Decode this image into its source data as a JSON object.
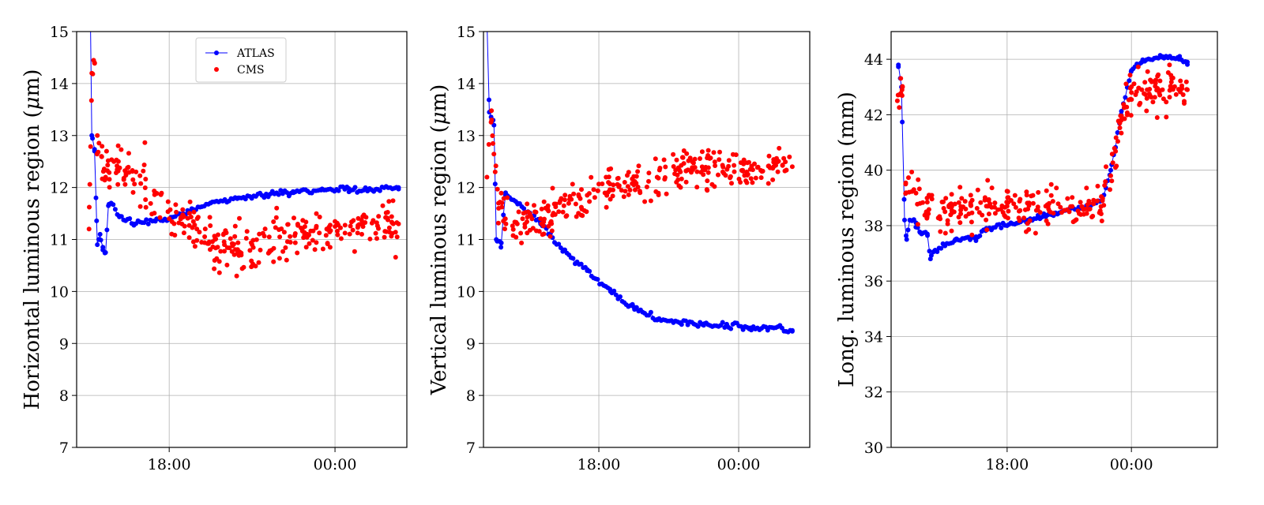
{
  "figure": {
    "series_colors": {
      "ATLAS": "#0000ff",
      "CMS": "#ff0000"
    },
    "grid": true
  },
  "chart_data": [
    {
      "type": "scatter",
      "ylabel": "Horizontal luminous region (μm)",
      "ylabel_parts": [
        "Horizontal luminous region (",
        "μ",
        "m)"
      ],
      "x_unit": "hours since 18:00 (display only)",
      "xlim": [
        -3.35,
        8.6
      ],
      "ylim": [
        7,
        15
      ],
      "xticks": [
        0,
        6
      ],
      "xtick_labels": [
        "18:00",
        "00:00"
      ],
      "yticks": [
        7,
        8,
        9,
        10,
        11,
        12,
        13,
        14,
        15
      ],
      "ytick_labels": [
        "7",
        "8",
        "9",
        "10",
        "11",
        "12",
        "13",
        "14",
        "15"
      ],
      "legend": {
        "position": "top-center-left",
        "entries": [
          "ATLAS",
          "CMS"
        ]
      },
      "series": [
        {
          "name": "ATLAS",
          "style": "line+markers",
          "anchors": [
            [
              -2.85,
              15.2
            ],
            [
              -2.8,
              13.0
            ],
            [
              -2.7,
              12.7
            ],
            [
              -2.65,
              11.8
            ],
            [
              -2.6,
              10.9
            ],
            [
              -2.5,
              11.1
            ],
            [
              -2.4,
              10.8
            ],
            [
              -2.3,
              10.75
            ],
            [
              -2.2,
              11.65
            ],
            [
              -2.1,
              11.7
            ],
            [
              -1.8,
              11.45
            ],
            [
              -1.3,
              11.3
            ],
            [
              -0.5,
              11.35
            ],
            [
              0.5,
              11.5
            ],
            [
              1.5,
              11.7
            ],
            [
              2.5,
              11.8
            ],
            [
              3.5,
              11.85
            ],
            [
              4.5,
              11.9
            ],
            [
              5.5,
              11.95
            ],
            [
              6.5,
              11.98
            ],
            [
              7.5,
              11.97
            ],
            [
              8.3,
              12.0
            ]
          ]
        },
        {
          "name": "CMS",
          "style": "markers",
          "anchors": [
            [
              -2.9,
              11.2
            ],
            [
              -2.8,
              14.2
            ],
            [
              -2.7,
              14.4
            ],
            [
              -2.6,
              13.0
            ],
            [
              -2.45,
              12.6
            ],
            [
              -2.3,
              12.2
            ],
            [
              -2.0,
              12.5
            ],
            [
              -1.2,
              12.3
            ],
            [
              -0.5,
              11.9
            ],
            [
              0.0,
              11.4
            ],
            [
              1.0,
              11.2
            ],
            [
              2.0,
              10.9
            ],
            [
              3.0,
              10.9
            ],
            [
              4.0,
              11.05
            ],
            [
              5.0,
              11.1
            ],
            [
              6.0,
              11.25
            ],
            [
              7.0,
              11.3
            ],
            [
              8.3,
              11.3
            ]
          ],
          "noise": 0.22
        }
      ]
    },
    {
      "type": "scatter",
      "ylabel": "Vertical luminous region (μm)",
      "ylabel_parts": [
        "Vertical luminous region (",
        "μ",
        "m)"
      ],
      "x_unit": "hours since 18:00 (display only)",
      "xlim": [
        -4.95,
        9.05
      ],
      "ylim": [
        7,
        15
      ],
      "xticks": [
        0,
        6
      ],
      "xtick_labels": [
        "18:00",
        "00:00"
      ],
      "yticks": [
        7,
        8,
        9,
        10,
        11,
        12,
        13,
        14,
        15
      ],
      "ytick_labels": [
        "7",
        "8",
        "9",
        "10",
        "11",
        "12",
        "13",
        "14",
        "15"
      ],
      "series": [
        {
          "name": "ATLAS",
          "style": "line+markers",
          "anchors": [
            [
              -4.8,
              15.2
            ],
            [
              -4.7,
              13.45
            ],
            [
              -4.5,
              13.2
            ],
            [
              -4.4,
              11.0
            ],
            [
              -4.2,
              10.85
            ],
            [
              -4.0,
              11.9
            ],
            [
              -3.5,
              11.7
            ],
            [
              -2.5,
              11.3
            ],
            [
              -1.5,
              10.8
            ],
            [
              -0.5,
              10.4
            ],
            [
              0.5,
              10.0
            ],
            [
              1.5,
              9.7
            ],
            [
              2.5,
              9.45
            ],
            [
              3.5,
              9.4
            ],
            [
              4.5,
              9.35
            ],
            [
              5.5,
              9.35
            ],
            [
              6.5,
              9.3
            ],
            [
              7.5,
              9.3
            ],
            [
              8.3,
              9.25
            ]
          ]
        },
        {
          "name": "CMS",
          "style": "markers",
          "anchors": [
            [
              -4.8,
              12.2
            ],
            [
              -4.6,
              13.3
            ],
            [
              -4.45,
              12.3
            ],
            [
              -4.3,
              11.6
            ],
            [
              -3.5,
              11.3
            ],
            [
              -2.5,
              11.4
            ],
            [
              -1.5,
              11.65
            ],
            [
              -0.5,
              11.85
            ],
            [
              0.5,
              11.95
            ],
            [
              1.5,
              12.05
            ],
            [
              2.5,
              12.2
            ],
            [
              3.5,
              12.3
            ],
            [
              4.5,
              12.35
            ],
            [
              5.5,
              12.35
            ],
            [
              6.5,
              12.35
            ],
            [
              7.5,
              12.4
            ],
            [
              8.3,
              12.4
            ]
          ],
          "noise": 0.2
        }
      ]
    },
    {
      "type": "scatter",
      "ylabel": "Long. luminous region (mm)",
      "ylabel_parts": [
        "Long. luminous region (mm)"
      ],
      "x_unit": "hours since 18:00 (display only)",
      "xlim": [
        -5.6,
        10.15
      ],
      "ylim": [
        30,
        45
      ],
      "xticks": [
        0,
        6
      ],
      "xtick_labels": [
        "18:00",
        "00:00"
      ],
      "yticks": [
        30,
        32,
        34,
        36,
        38,
        40,
        42,
        44
      ],
      "ytick_labels": [
        "30",
        "32",
        "34",
        "36",
        "38",
        "40",
        "42",
        "44"
      ],
      "series": [
        {
          "name": "ATLAS",
          "style": "line+markers",
          "anchors": [
            [
              -5.25,
              43.8
            ],
            [
              -5.1,
              43.0
            ],
            [
              -4.95,
              38.2
            ],
            [
              -4.85,
              37.5
            ],
            [
              -4.7,
              38.2
            ],
            [
              -4.4,
              38.1
            ],
            [
              -4.2,
              37.75
            ],
            [
              -3.85,
              37.7
            ],
            [
              -3.7,
              36.8
            ],
            [
              -3.5,
              37.1
            ],
            [
              -2.5,
              37.5
            ],
            [
              -1.5,
              37.6
            ],
            [
              -1.0,
              37.9
            ],
            [
              0.0,
              38.0
            ],
            [
              1.0,
              38.2
            ],
            [
              2.0,
              38.4
            ],
            [
              3.0,
              38.6
            ],
            [
              4.0,
              38.7
            ],
            [
              4.6,
              38.9
            ],
            [
              5.0,
              40.0
            ],
            [
              5.5,
              42.0
            ],
            [
              6.0,
              43.6
            ],
            [
              6.5,
              43.9
            ],
            [
              7.5,
              44.1
            ],
            [
              8.3,
              44.0
            ],
            [
              8.7,
              43.9
            ]
          ]
        },
        {
          "name": "CMS",
          "style": "markers",
          "anchors": [
            [
              -5.3,
              42.5
            ],
            [
              -5.05,
              43.0
            ],
            [
              -4.9,
              39.5
            ],
            [
              -4.5,
              39.3
            ],
            [
              -4.2,
              38.8
            ],
            [
              -3.9,
              38.5
            ],
            [
              -3.0,
              38.5
            ],
            [
              -2.0,
              38.6
            ],
            [
              -1.0,
              38.7
            ],
            [
              0.0,
              38.7
            ],
            [
              1.0,
              38.6
            ],
            [
              2.0,
              38.6
            ],
            [
              3.0,
              38.5
            ],
            [
              4.0,
              38.6
            ],
            [
              4.6,
              38.9
            ],
            [
              5.0,
              39.8
            ],
            [
              5.5,
              41.8
            ],
            [
              6.0,
              42.8
            ],
            [
              6.5,
              42.9
            ],
            [
              7.5,
              42.9
            ],
            [
              8.3,
              42.9
            ],
            [
              8.7,
              42.9
            ]
          ],
          "noise": 0.38
        }
      ]
    }
  ]
}
